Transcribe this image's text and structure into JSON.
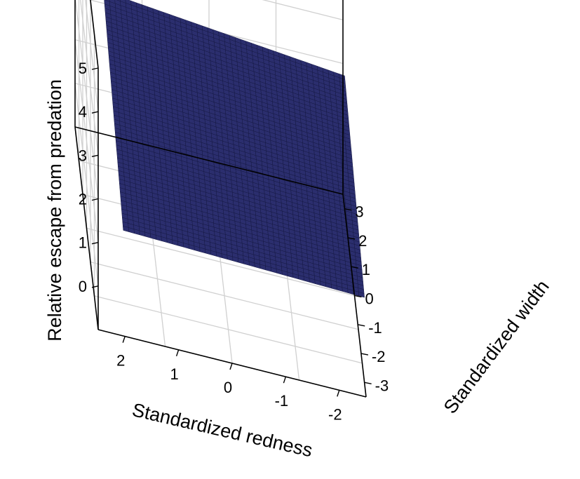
{
  "chart_data": {
    "type": "surface3d",
    "title": "",
    "zlabel": "Relative escape from predation",
    "xlabel": "Standardized redness",
    "ylabel": "Standardized width",
    "z_ticks": [
      "0",
      "1",
      "2",
      "3",
      "4",
      "5"
    ],
    "x_ticks": [
      "2",
      "1",
      "0",
      "-1",
      "-2"
    ],
    "y_ticks": [
      "-3",
      "-2",
      "-1",
      "0",
      "1",
      "2",
      "3"
    ],
    "zlim": [
      -1,
      5
    ],
    "xlim": [
      2.5,
      -2.5
    ],
    "ylim": [
      -3.5,
      3.5
    ],
    "grid": true,
    "surface_color": "#2b2e6e",
    "surface_z_corners": {
      "redness_2_width_-3": 1.1,
      "redness_-2.5_width_-3": 0.95,
      "redness_2_width_3": 2.6,
      "redness_-2.5_width_3": 2.05
    }
  }
}
